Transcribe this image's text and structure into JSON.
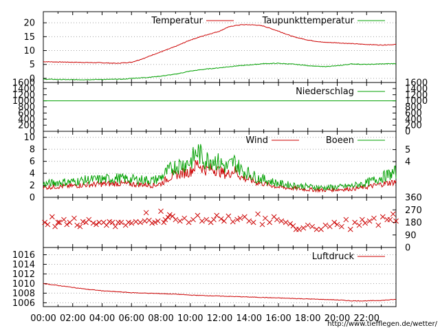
{
  "colors": {
    "red": "#cc0000",
    "green": "#00a000",
    "frame": "#000000",
    "grid": "#a0a0a0",
    "url": "#cc0000"
  },
  "footer": {
    "url": "http://www.tiefflegen.de/wetter/"
  },
  "x_axis": {
    "ticks": [
      "00:00",
      "02:00",
      "04:00",
      "06:00",
      "08:00",
      "10:00",
      "12:00",
      "14:00",
      "16:00",
      "18:00",
      "20:00",
      "22:00"
    ],
    "range_hours": [
      0,
      24
    ]
  },
  "chart_data": [
    {
      "type": "line",
      "legend_position": "top-right",
      "grid": true,
      "ylim": [
        -1.5,
        24
      ],
      "y_ticks": [
        "0",
        "5",
        "10",
        "15",
        "20"
      ],
      "series": [
        {
          "name": "Temperatur",
          "color": "red",
          "x": [
            0,
            2,
            4,
            5,
            6,
            6.5,
            7,
            7.5,
            8,
            9,
            10,
            11,
            12,
            12.5,
            13,
            13.5,
            14,
            14.5,
            15,
            16,
            17,
            18,
            19,
            20,
            21,
            22,
            23,
            24
          ],
          "y": [
            6,
            5.8,
            5.6,
            5.4,
            5.8,
            6.6,
            7.5,
            8.6,
            9.5,
            11.5,
            13.8,
            15.5,
            17,
            18.3,
            19,
            19.3,
            19.3,
            19.2,
            18.8,
            17,
            15,
            13.8,
            13,
            12.8,
            12.5,
            12.2,
            12,
            12.2
          ]
        },
        {
          "name": "Taupunkttemperatur",
          "color": "green",
          "x": [
            0,
            2,
            4,
            5.5,
            6,
            7,
            8,
            9,
            10,
            11,
            12,
            13,
            14,
            15,
            16,
            17,
            18,
            19,
            20,
            21,
            22,
            23,
            24
          ],
          "y": [
            -0.3,
            -0.5,
            -0.4,
            -0.3,
            0,
            0.3,
            0.8,
            1.5,
            2.6,
            3.3,
            3.8,
            4.4,
            4.8,
            5.3,
            5.4,
            5.1,
            4.6,
            4.2,
            4.5,
            5.2,
            5.0,
            5.2,
            5.3
          ]
        }
      ]
    },
    {
      "type": "line",
      "legend_position": "top-right",
      "grid": false,
      "ylim": [
        0,
        1600
      ],
      "y_ticks": [
        "0",
        "200",
        "400",
        "600",
        "800",
        "1000",
        "1200",
        "1400",
        "1600"
      ],
      "series": [
        {
          "name": "Niederschlag",
          "color": "green",
          "x": [
            0,
            24
          ],
          "y": [
            1000,
            1000
          ]
        }
      ]
    },
    {
      "type": "line",
      "legend_position": "top-right",
      "grid": true,
      "ylim": [
        0,
        11
      ],
      "y_ticks": [
        "0",
        "2",
        "4",
        "6",
        "8",
        "10"
      ],
      "y2_ticks": [
        "4",
        "5"
      ],
      "series": [
        {
          "name": "Wind",
          "color": "red",
          "x": [
            0,
            1,
            2,
            3,
            4,
            5,
            6,
            7,
            7.5,
            8,
            8.5,
            9,
            9.5,
            10,
            10.5,
            11,
            11.5,
            12,
            12.5,
            13,
            13.5,
            14,
            14.5,
            15,
            16,
            17,
            18,
            19,
            20,
            21,
            22,
            23,
            24
          ],
          "y": [
            1.6,
            1.8,
            1.9,
            2.1,
            2.2,
            2.3,
            2.2,
            2.1,
            2.0,
            2.3,
            3.2,
            3.8,
            4.0,
            4.3,
            5.6,
            4.6,
            4.8,
            4.3,
            3.8,
            4.5,
            3.3,
            3.0,
            2.5,
            2.3,
            1.7,
            1.5,
            1.3,
            1.2,
            1.3,
            1.4,
            1.7,
            2.2,
            2.6
          ]
        },
        {
          "name": "Boeen",
          "color": "green",
          "x": [
            0,
            1,
            2,
            3,
            4,
            5,
            6,
            7,
            7.5,
            8,
            8.5,
            9,
            9.5,
            10,
            10.5,
            11,
            11.5,
            12,
            12.5,
            13,
            13.5,
            14,
            14.5,
            15,
            16,
            17,
            18,
            19,
            20,
            21,
            22,
            23,
            24
          ],
          "y": [
            2.2,
            2.5,
            2.6,
            2.9,
            3.0,
            3.2,
            3.0,
            2.9,
            2.8,
            3.3,
            4.4,
            5.2,
            5.5,
            5.9,
            7.6,
            6.2,
            6.4,
            5.7,
            5.0,
            5.9,
            4.5,
            4.0,
            3.3,
            3.0,
            2.3,
            2.0,
            1.8,
            1.6,
            1.7,
            1.9,
            2.4,
            3.3,
            4.2
          ]
        }
      ]
    },
    {
      "type": "scatter",
      "grid": false,
      "ylim": [
        0,
        360
      ],
      "y2_ticks": [
        "0",
        "90",
        "180",
        "270",
        "360"
      ],
      "series": [
        {
          "color": "red",
          "x": [
            0.1,
            0.3,
            0.6,
            0.8,
            1.0,
            1.1,
            1.4,
            1.6,
            1.8,
            2.1,
            2.3,
            2.5,
            2.7,
            2.9,
            3.1,
            3.4,
            3.6,
            3.8,
            4.1,
            4.3,
            4.5,
            4.7,
            4.9,
            5.1,
            5.3,
            5.6,
            5.8,
            6.0,
            6.3,
            6.6,
            6.9,
            7.0,
            7.2,
            7.4,
            7.6,
            7.8,
            8.0,
            8.2,
            8.3,
            8.5,
            8.6,
            8.8,
            9.0,
            9.3,
            9.6,
            9.9,
            10.2,
            10.5,
            10.8,
            11.1,
            11.4,
            11.6,
            11.8,
            12.1,
            12.3,
            12.6,
            12.9,
            13.2,
            13.4,
            13.7,
            14.0,
            14.3,
            14.6,
            14.9,
            15.1,
            15.4,
            15.7,
            15.9,
            16.2,
            16.5,
            16.8,
            17.0,
            17.2,
            17.4,
            17.7,
            18.0,
            18.3,
            18.6,
            18.9,
            19.2,
            19.5,
            19.8,
            20.0,
            20.3,
            20.6,
            20.9,
            21.2,
            21.5,
            21.7,
            21.9,
            22.2,
            22.5,
            22.8,
            23.1,
            23.4,
            23.6,
            23.8,
            24.0
          ],
          "y": [
            180,
            165,
            220,
            150,
            180,
            180,
            200,
            165,
            180,
            210,
            160,
            150,
            185,
            180,
            200,
            175,
            165,
            180,
            180,
            160,
            185,
            180,
            150,
            180,
            180,
            160,
            180,
            175,
            185,
            180,
            190,
            250,
            195,
            175,
            180,
            190,
            260,
            180,
            200,
            215,
            235,
            225,
            200,
            190,
            210,
            180,
            200,
            230,
            190,
            200,
            180,
            200,
            230,
            205,
            190,
            225,
            185,
            200,
            210,
            220,
            190,
            180,
            240,
            165,
            210,
            180,
            220,
            200,
            190,
            180,
            170,
            155,
            130,
            130,
            140,
            160,
            150,
            130,
            130,
            160,
            150,
            180,
            165,
            150,
            200,
            130,
            180,
            160,
            200,
            175,
            190,
            210,
            160,
            220,
            200,
            200,
            240,
            190
          ]
        }
      ]
    },
    {
      "type": "line",
      "legend_position": "top-right",
      "grid": true,
      "ylim": [
        1005.2,
        1017.5
      ],
      "y_ticks": [
        "1006",
        "1008",
        "1010",
        "1012",
        "1014",
        "1016"
      ],
      "series": [
        {
          "name": "Luftdruck",
          "color": "red",
          "x": [
            0,
            1,
            2,
            3,
            4,
            5,
            6,
            7,
            8,
            9,
            10,
            11,
            12,
            13,
            14,
            15,
            16,
            17,
            18,
            19,
            20,
            21,
            22,
            23,
            24
          ],
          "y": [
            1010,
            1009.6,
            1009.2,
            1008.8,
            1008.5,
            1008.3,
            1008.1,
            1008.0,
            1007.9,
            1007.8,
            1007.6,
            1007.5,
            1007.4,
            1007.3,
            1007.2,
            1007.1,
            1007.0,
            1006.9,
            1006.8,
            1006.7,
            1006.6,
            1006.4,
            1006.4,
            1006.5,
            1006.7
          ]
        }
      ]
    }
  ]
}
